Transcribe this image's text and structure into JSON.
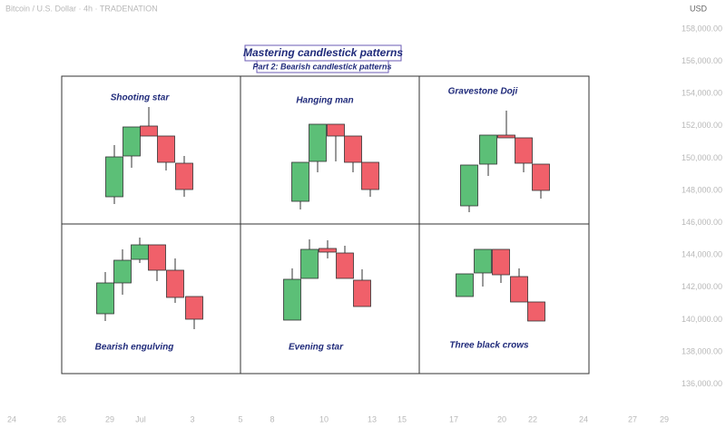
{
  "header": {
    "symbol": "Bitcoin / U.S. Dollar · 4h · TRADENATION",
    "currency": "USD"
  },
  "title": "Mastering candlestick patterns",
  "subtitle": "Part 2: Bearish candlestick patterns",
  "patterns": [
    "Shooting star",
    "Hanging man",
    "Gravestone Doji",
    "Bearish engulving",
    "Evening star",
    "Three black crows"
  ],
  "price_axis": [
    "158,000.00",
    "156,000.00",
    "154,000.00",
    "152,000.00",
    "150,000.00",
    "148,000.00",
    "146,000.00",
    "144,000.00",
    "142,000.00",
    "140,000.00",
    "138,000.00",
    "136,000.00"
  ],
  "time_axis": [
    "24",
    "26",
    "29",
    "Jul",
    "3",
    "5",
    "8",
    "10",
    "13",
    "15",
    "17",
    "20",
    "22",
    "24",
    "27",
    "29"
  ]
}
